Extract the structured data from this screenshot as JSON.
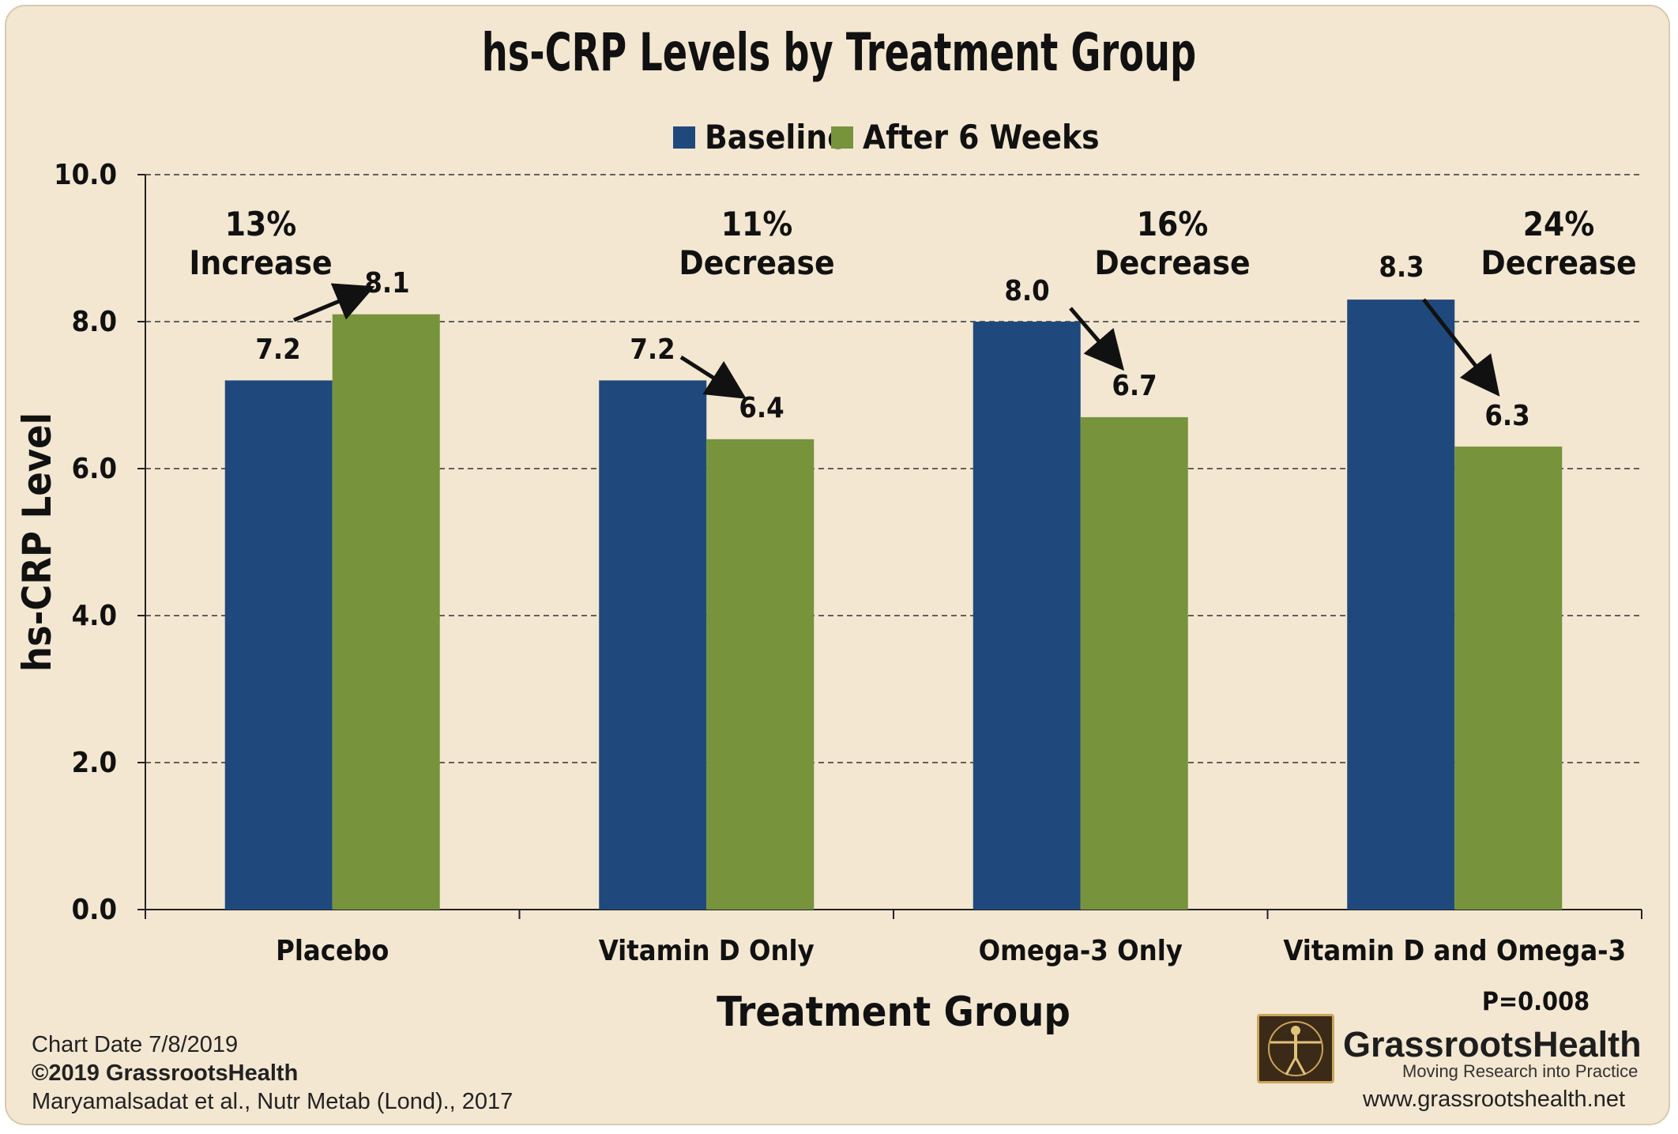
{
  "chart_data": {
    "type": "bar",
    "title": "hs-CRP Levels by Treatment Group",
    "xlabel": "Treatment Group",
    "ylabel": "hs-CRP Level",
    "ylim": [
      0,
      10
    ],
    "yticks": [
      "0.0",
      "2.0",
      "4.0",
      "6.0",
      "8.0",
      "10.0"
    ],
    "grid": "dashed horizontal",
    "legend_position": "top-center",
    "categories": [
      "Placebo",
      "Vitamin D Only",
      "Omega-3 Only",
      "Vitamin D and Omega-3"
    ],
    "series": [
      {
        "name": "Baseline",
        "color": "#1f497d",
        "values": [
          7.2,
          7.2,
          8.0,
          8.3
        ],
        "labels": [
          "7.2",
          "7.2",
          "8.0",
          "8.3"
        ]
      },
      {
        "name": "After 6 Weeks",
        "color": "#77933c",
        "values": [
          8.1,
          6.4,
          6.7,
          6.3
        ],
        "labels": [
          "8.1",
          "6.4",
          "6.7",
          "6.3"
        ]
      }
    ],
    "annotations": [
      {
        "line1": "13%",
        "line2": "Increase"
      },
      {
        "line1": "11%",
        "line2": "Decrease"
      },
      {
        "line1": "16%",
        "line2": "Decrease"
      },
      {
        "line1": "24%",
        "line2": "Decrease"
      }
    ],
    "p_value": "P=0.008"
  },
  "footer": {
    "chart_date": "Chart Date 7/8/2019",
    "copyright": "©2019 GrassrootsHealth",
    "citation": "Maryamalsadat et al., Nutr Metab (Lond)., 2017"
  },
  "logo": {
    "name": "GrassrootsHealth",
    "tagline": "Moving Research into Practice",
    "url": "www.grassrootshealth.net",
    "icon": "vitruvian-man-icon"
  }
}
